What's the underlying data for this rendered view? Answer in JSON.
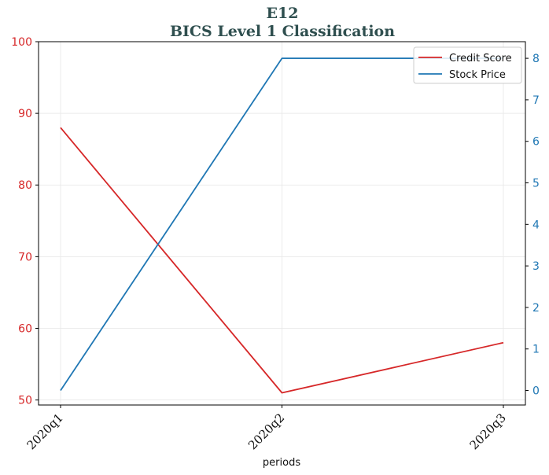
{
  "chart_data": {
    "type": "line",
    "title": "E12",
    "subtitle": "BICS Level 1 Classification",
    "xlabel": "periods",
    "categories": [
      "2020q1",
      "2020q2",
      "2020q3"
    ],
    "left_axis": {
      "ylim": [
        49.3,
        100
      ],
      "ticks": [
        50,
        60,
        70,
        80,
        90,
        100
      ],
      "color": "#d62728"
    },
    "right_axis": {
      "ylim": [
        -0.35,
        8.4
      ],
      "ticks": [
        0,
        1,
        2,
        3,
        4,
        5,
        6,
        7,
        8
      ],
      "color": "#1f77b4"
    },
    "series": [
      {
        "name": "Credit Score",
        "axis": "left",
        "color": "#d62728",
        "values": [
          88,
          51,
          58
        ]
      },
      {
        "name": "Stock Price",
        "axis": "right",
        "color": "#1f77b4",
        "values": [
          0,
          8,
          8
        ]
      }
    ],
    "grid": true,
    "legend_position": "top-right"
  }
}
